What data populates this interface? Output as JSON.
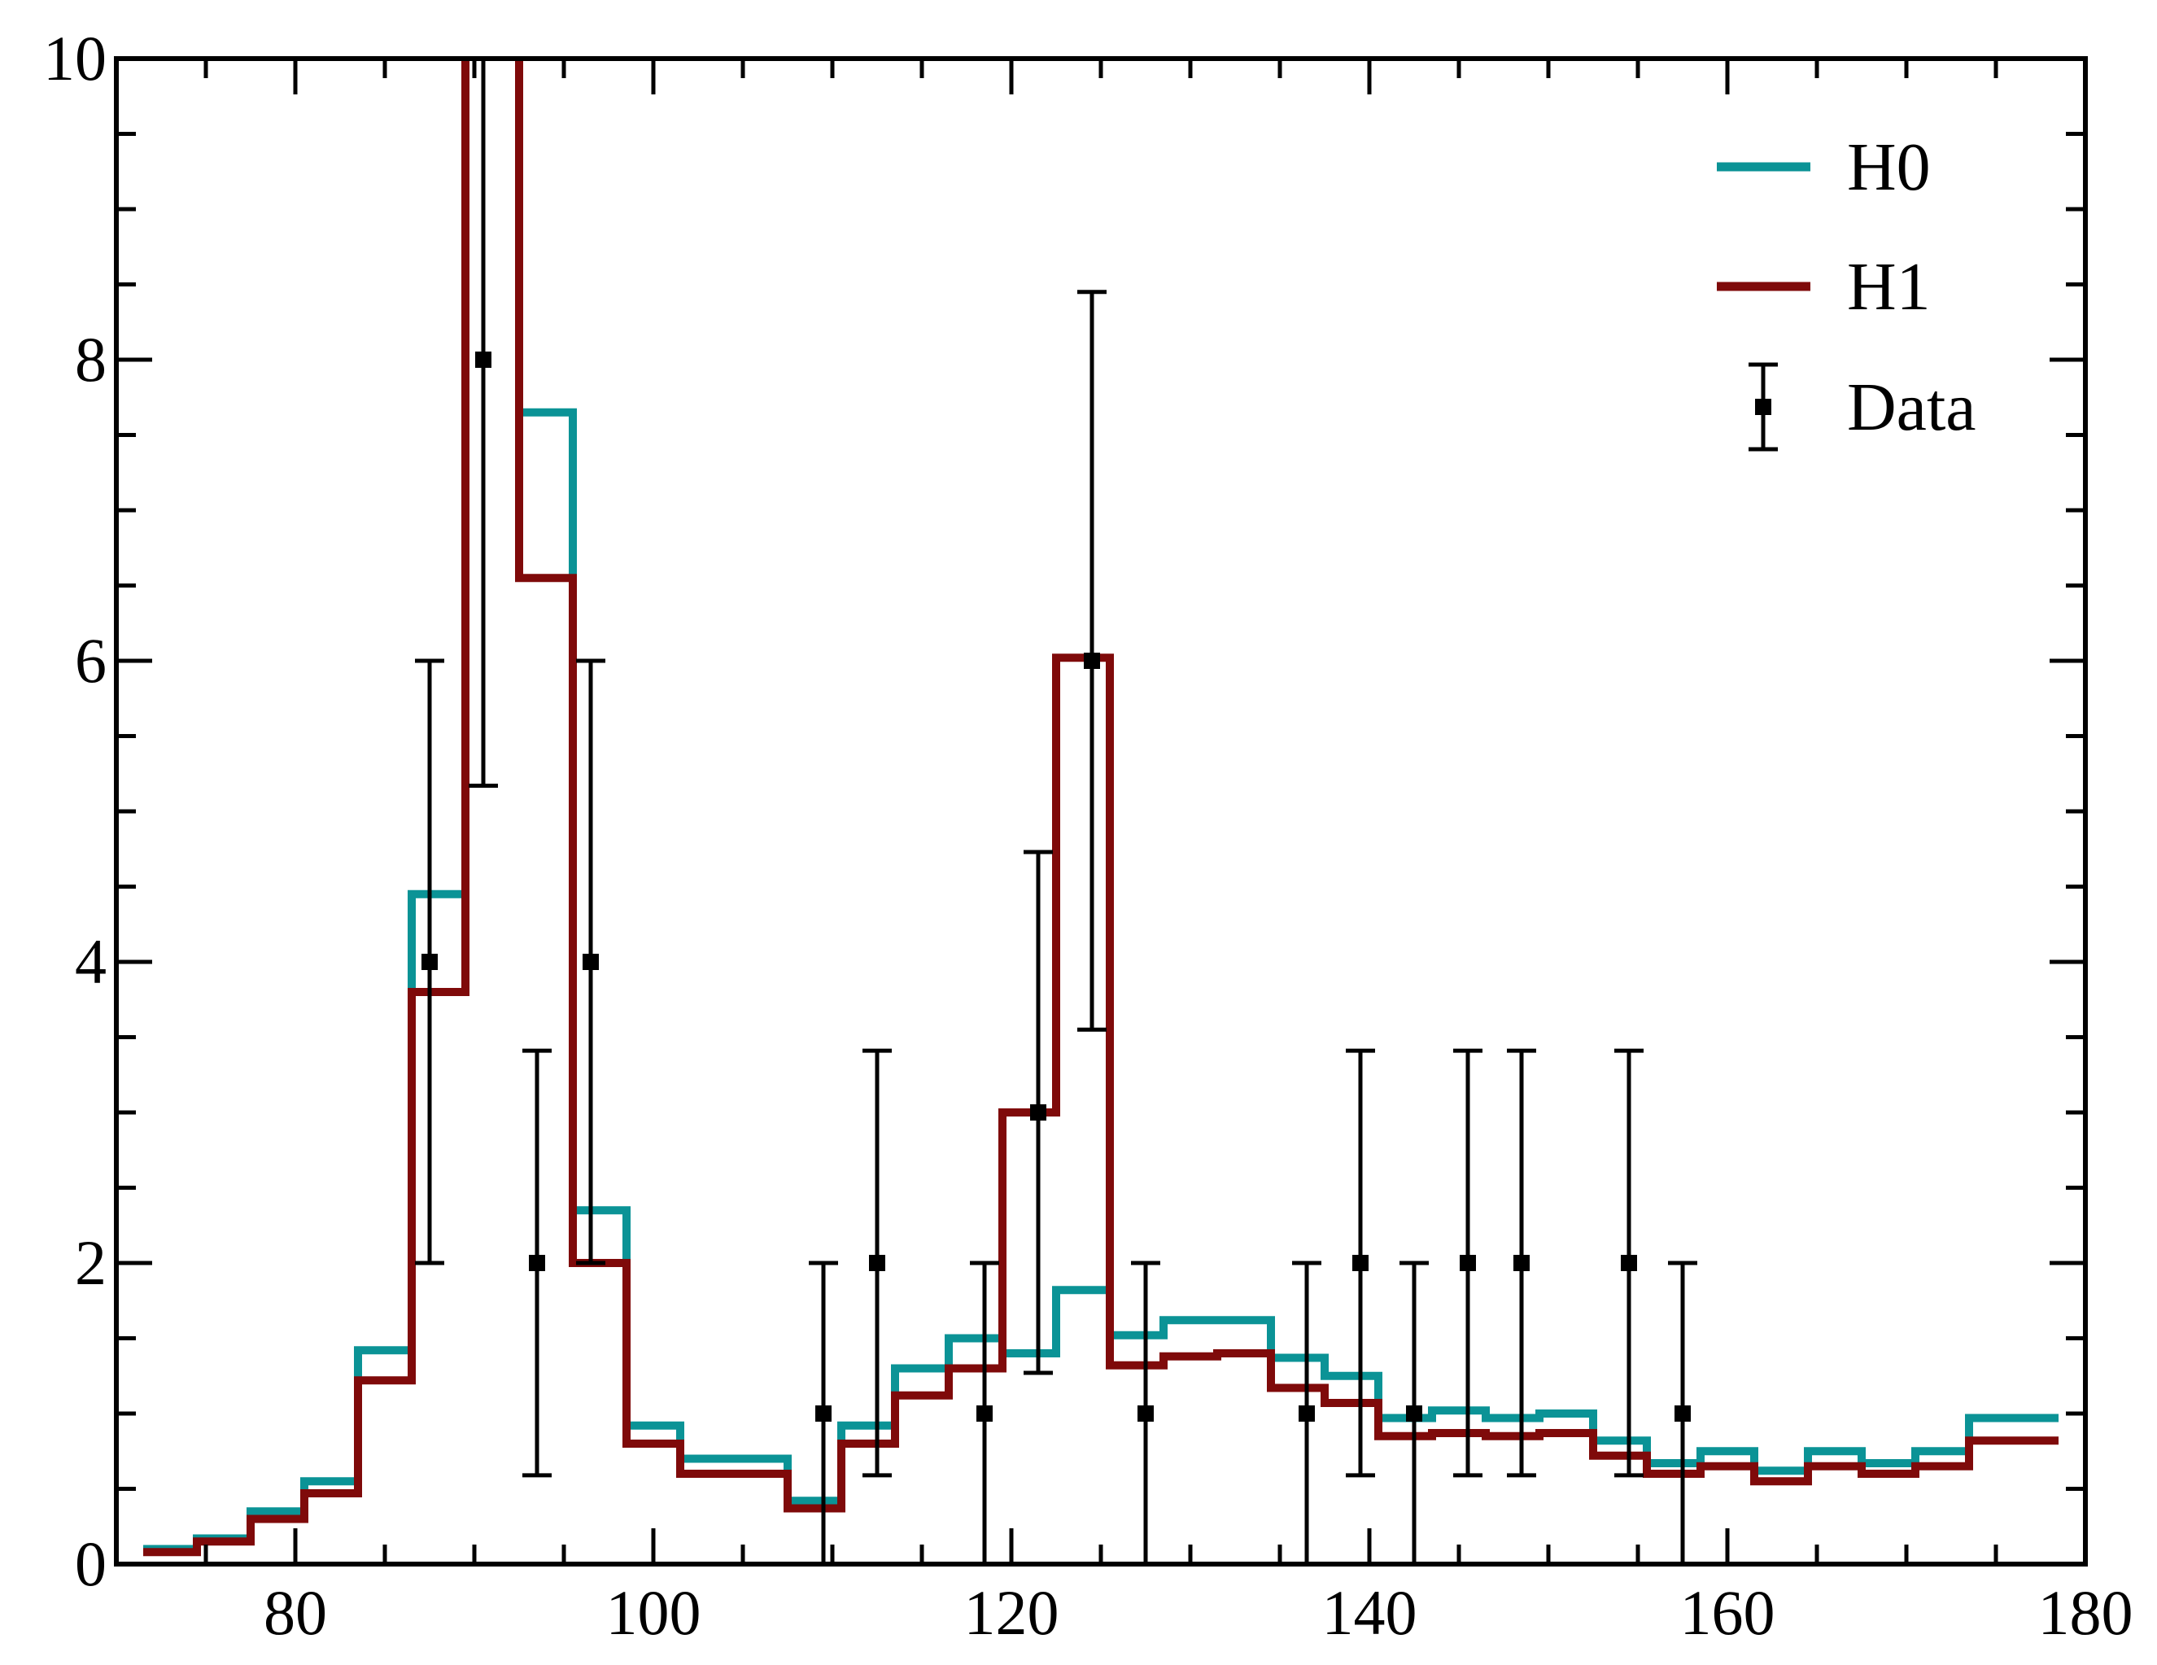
{
  "chart_data": {
    "type": "step",
    "title": "",
    "xlabel": "",
    "ylabel": "",
    "xlim": [
      70,
      180
    ],
    "ylim": [
      0,
      10
    ],
    "x_ticks": [
      80,
      100,
      120,
      140,
      160,
      180
    ],
    "y_ticks": [
      0,
      2,
      4,
      6,
      8,
      10
    ],
    "x_tick_labels": [
      "80",
      "100",
      "120",
      "140",
      "160",
      "180"
    ],
    "y_tick_labels": [
      "0",
      "2",
      "4",
      "6",
      "8",
      "10"
    ],
    "legend_position": "top-right",
    "bin_edges": [
      71.5,
      74.5,
      77.5,
      80.5,
      83.5,
      86.5,
      89.5,
      92.5,
      95.5,
      98.5,
      101.5,
      104.5,
      107.5,
      110.5,
      113.5,
      116.5,
      119.5,
      122.5,
      125.5,
      128.5,
      131.5,
      134.5,
      137.5,
      140.5,
      143.5,
      146.5,
      149.5,
      152.5,
      155.5,
      158.5,
      161.5,
      164.5,
      167.5,
      170.5,
      173.5,
      176.5,
      178.5
    ],
    "series": [
      {
        "name": "H0",
        "color": "#0b9396",
        "values": [
          0.1,
          0.17,
          0.35,
          0.55,
          1.42,
          4.45,
          11.5,
          7.65,
          2.35,
          0.92,
          0.7,
          0.7,
          0.42,
          0.92,
          1.3,
          1.5,
          1.4,
          1.82,
          1.52,
          1.62,
          1.62,
          1.37,
          1.25,
          0.97,
          1.02,
          0.97,
          1.0,
          0.82,
          0.67,
          0.75,
          0.62,
          0.75,
          0.67,
          0.75,
          0.97,
          0.97
        ]
      },
      {
        "name": "H1",
        "color": "#7f0a0a",
        "values": [
          0.08,
          0.15,
          0.3,
          0.47,
          1.22,
          3.8,
          11.5,
          6.55,
          2.0,
          0.8,
          0.6,
          0.6,
          0.37,
          0.8,
          1.12,
          1.3,
          3.0,
          6.02,
          1.32,
          1.38,
          1.4,
          1.17,
          1.07,
          0.85,
          0.87,
          0.85,
          0.87,
          0.72,
          0.6,
          0.65,
          0.55,
          0.65,
          0.6,
          0.65,
          0.82,
          0.82
        ]
      }
    ],
    "data": {
      "name": "Data",
      "color": "#000000",
      "points": [
        {
          "x": 87.5,
          "y": 4,
          "lo": 2.0,
          "hi": 6.0
        },
        {
          "x": 90.5,
          "y": 8,
          "lo": 5.17,
          "hi": 10.83
        },
        {
          "x": 93.5,
          "y": 2,
          "lo": 0.59,
          "hi": 3.41
        },
        {
          "x": 96.5,
          "y": 4,
          "lo": 2.0,
          "hi": 6.0
        },
        {
          "x": 109.5,
          "y": 1,
          "lo": 0.0,
          "hi": 2.0
        },
        {
          "x": 112.5,
          "y": 2,
          "lo": 0.59,
          "hi": 3.41
        },
        {
          "x": 118.5,
          "y": 1,
          "lo": 0.0,
          "hi": 2.0
        },
        {
          "x": 121.5,
          "y": 3,
          "lo": 1.27,
          "hi": 4.73
        },
        {
          "x": 124.5,
          "y": 6,
          "lo": 3.55,
          "hi": 8.45
        },
        {
          "x": 127.5,
          "y": 1,
          "lo": 0.0,
          "hi": 2.0
        },
        {
          "x": 136.5,
          "y": 1,
          "lo": 0.0,
          "hi": 2.0
        },
        {
          "x": 139.5,
          "y": 2,
          "lo": 0.59,
          "hi": 3.41
        },
        {
          "x": 142.5,
          "y": 1,
          "lo": 0.0,
          "hi": 2.0
        },
        {
          "x": 145.5,
          "y": 2,
          "lo": 0.59,
          "hi": 3.41
        },
        {
          "x": 148.5,
          "y": 2,
          "lo": 0.59,
          "hi": 3.41
        },
        {
          "x": 154.5,
          "y": 2,
          "lo": 0.59,
          "hi": 3.41
        },
        {
          "x": 157.5,
          "y": 1,
          "lo": 0.0,
          "hi": 2.0
        }
      ]
    },
    "legend": [
      {
        "label": "H0",
        "kind": "line",
        "color": "#0b9396"
      },
      {
        "label": "H1",
        "kind": "line",
        "color": "#7f0a0a"
      },
      {
        "label": "Data",
        "kind": "errorbar",
        "color": "#000000"
      }
    ]
  }
}
